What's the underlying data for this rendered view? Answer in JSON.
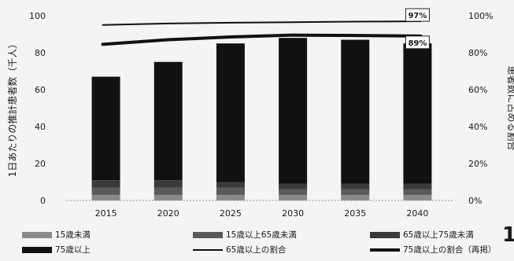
{
  "chart_data": {
    "type": "bar",
    "categories": [
      "2015",
      "2020",
      "2025",
      "2030",
      "2035",
      "2040"
    ],
    "ylabel": "1日あたりの推計患者数（千人）",
    "y2label": "患者数に占める割合",
    "ylim": [
      0,
      100
    ],
    "y2lim": [
      0,
      1
    ],
    "yticks": [
      0,
      20,
      40,
      60,
      80,
      100
    ],
    "y2ticks": [
      "0%",
      "20%",
      "40%",
      "60%",
      "80%",
      "100%"
    ],
    "stacked": true,
    "series": [
      {
        "name": "15歳未満",
        "kind": "bar",
        "color": "#8a8a8a",
        "values": [
          3,
          3,
          3,
          3,
          3,
          3
        ]
      },
      {
        "name": "15歳以上65歳未満",
        "kind": "bar",
        "color": "#5a5a5a",
        "values": [
          4,
          4,
          4,
          3,
          3,
          3
        ]
      },
      {
        "name": "65歳以上75歳未満",
        "kind": "bar",
        "color": "#3a3a3a",
        "values": [
          4,
          4,
          3,
          3,
          3,
          3
        ]
      },
      {
        "name": "75歳以上",
        "kind": "bar",
        "color": "#111111",
        "values": [
          56,
          64,
          75,
          79,
          78,
          76
        ]
      },
      {
        "name": "65歳以上の割合",
        "kind": "line",
        "axis": "right",
        "color": "#111111",
        "width": 2,
        "values": [
          0.95,
          0.958,
          0.962,
          0.965,
          0.968,
          0.97
        ]
      },
      {
        "name": "75歳以上の割合（再掲）",
        "kind": "line",
        "axis": "right",
        "color": "#111111",
        "width": 4,
        "values": [
          0.845,
          0.87,
          0.885,
          0.895,
          0.893,
          0.89
        ]
      }
    ],
    "annotations": [
      {
        "series": "65歳以上の割合",
        "category": "2040",
        "text": "97%"
      },
      {
        "series": "75歳以上の割合（再掲）",
        "category": "2040",
        "text": "89%"
      }
    ],
    "legend_position": "bottom",
    "grid": false
  },
  "page_mark": "1"
}
